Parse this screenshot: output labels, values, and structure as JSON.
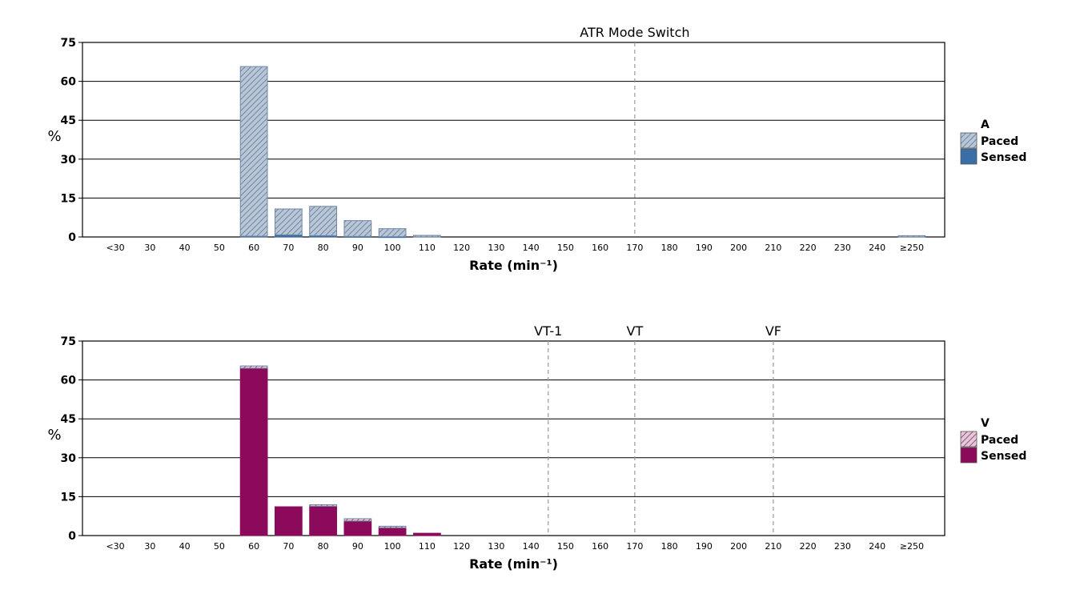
{
  "chart_data": [
    {
      "type": "bar",
      "stacked": true,
      "categories": [
        "<30",
        "30",
        "40",
        "50",
        "60",
        "70",
        "80",
        "90",
        "100",
        "110",
        "120",
        "130",
        "140",
        "150",
        "160",
        "170",
        "180",
        "190",
        "200",
        "210",
        "220",
        "230",
        "240",
        "≥250"
      ],
      "series": [
        {
          "name": "Sensed",
          "color": "#3a6ea5",
          "pattern": "solid",
          "values": [
            0,
            0,
            0,
            0,
            0.3,
            0.8,
            0.5,
            0.2,
            0.1,
            0,
            0,
            0,
            0,
            0,
            0,
            0,
            0,
            0,
            0,
            0,
            0,
            0,
            0,
            0
          ]
        },
        {
          "name": "Paced",
          "color": "#a9b7c8",
          "pattern": "hatch",
          "values": [
            0,
            0,
            0,
            0,
            65.4,
            10.0,
            11.3,
            6.1,
            3.1,
            0.6,
            0,
            0,
            0,
            0,
            0,
            0,
            0,
            0,
            0,
            0,
            0,
            0,
            0,
            0.5
          ]
        }
      ],
      "xlabel": "Rate (min⁻¹)",
      "ylabel": "%",
      "ylim": [
        0,
        75
      ],
      "yticks": [
        0,
        15,
        30,
        45,
        60,
        75
      ],
      "grid": true,
      "legend": {
        "title": "A",
        "placement": "right"
      },
      "markers": [
        {
          "label": "ATR Mode Switch",
          "at": "170"
        }
      ]
    },
    {
      "type": "bar",
      "stacked": true,
      "categories": [
        "<30",
        "30",
        "40",
        "50",
        "60",
        "70",
        "80",
        "90",
        "100",
        "110",
        "120",
        "130",
        "140",
        "150",
        "160",
        "170",
        "180",
        "190",
        "200",
        "210",
        "220",
        "230",
        "240",
        "≥250"
      ],
      "series": [
        {
          "name": "Sensed",
          "color": "#8b0a5c",
          "pattern": "solid",
          "values": [
            0,
            0,
            0,
            0,
            64.5,
            11.1,
            11.3,
            5.6,
            3.0,
            0.9,
            0,
            0,
            0,
            0,
            0,
            0,
            0,
            0,
            0,
            0,
            0,
            0,
            0,
            0
          ]
        },
        {
          "name": "Paced",
          "color": "#c9a0b8",
          "pattern": "hatch",
          "values": [
            0,
            0,
            0,
            0,
            0.9,
            0,
            0.6,
            0.9,
            0.6,
            0,
            0,
            0,
            0,
            0,
            0,
            0,
            0,
            0,
            0,
            0,
            0,
            0,
            0,
            0
          ]
        }
      ],
      "xlabel": "Rate (min⁻¹)",
      "ylabel": "%",
      "ylim": [
        0,
        75
      ],
      "yticks": [
        0,
        15,
        30,
        45,
        60,
        75
      ],
      "grid": true,
      "legend": {
        "title": "V",
        "placement": "right"
      },
      "markers": [
        {
          "label": "VT-1",
          "at": "150",
          "offset": -0.5
        },
        {
          "label": "VT",
          "at": "170"
        },
        {
          "label": "VF",
          "at": "210"
        }
      ]
    }
  ]
}
